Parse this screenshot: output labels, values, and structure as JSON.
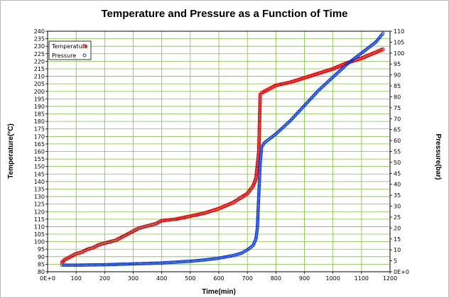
{
  "chart_data": {
    "type": "line",
    "title": "Temperature and Pressure as a Function of Time",
    "xlabel": "Time(min)",
    "ylabel_left": "Temperature(°C)",
    "ylabel_right": "Pressure(bar)",
    "xlim": [
      0,
      1200
    ],
    "ylim_left": [
      80,
      240
    ],
    "ylim_right": [
      0,
      110
    ],
    "x_ticks": [
      "0E+0",
      "100",
      "200",
      "300",
      "400",
      "500",
      "600",
      "700",
      "800",
      "900",
      "1000",
      "1100",
      "1200"
    ],
    "y_left_ticks": [
      "80",
      "85",
      "90",
      "95",
      "100",
      "105",
      "110",
      "115",
      "120",
      "125",
      "130",
      "135",
      "140",
      "145",
      "150",
      "155",
      "160",
      "165",
      "170",
      "175",
      "180",
      "185",
      "190",
      "195",
      "200",
      "205",
      "210",
      "215",
      "220",
      "225",
      "230",
      "235",
      "240"
    ],
    "y_right_ticks": [
      "0E+0",
      "5",
      "10",
      "15",
      "20",
      "25",
      "30",
      "35",
      "40",
      "45",
      "50",
      "55",
      "60",
      "65",
      "70",
      "75",
      "80",
      "85",
      "90",
      "95",
      "100",
      "105",
      "110"
    ],
    "grid": true,
    "legend_position": "top-left",
    "series": [
      {
        "name": "Temperature",
        "axis": "left",
        "color": "#e00000",
        "marker": "square",
        "x": [
          50,
          60,
          80,
          100,
          120,
          140,
          160,
          180,
          200,
          220,
          240,
          260,
          280,
          300,
          320,
          340,
          360,
          380,
          400,
          450,
          500,
          550,
          600,
          650,
          700,
          720,
          730,
          740,
          745,
          750,
          760,
          780,
          800,
          850,
          900,
          950,
          1000,
          1050,
          1100,
          1150,
          1175
        ],
        "y": [
          86,
          88,
          90,
          92,
          93,
          95,
          96,
          98,
          99,
          100,
          101,
          103,
          105,
          107,
          109,
          110,
          111,
          112,
          114,
          115,
          117,
          119,
          122,
          126,
          132,
          137,
          142,
          160,
          198,
          199,
          200,
          202,
          204,
          206,
          209,
          212,
          215,
          219,
          222,
          226,
          228
        ]
      },
      {
        "name": "Pressure",
        "axis": "right",
        "color": "#0033e0",
        "marker": "circle",
        "x": [
          50,
          100,
          200,
          300,
          400,
          500,
          550,
          600,
          650,
          680,
          700,
          720,
          730,
          735,
          740,
          745,
          750,
          760,
          780,
          800,
          850,
          900,
          950,
          1000,
          1050,
          1100,
          1150,
          1175
        ],
        "y": [
          3,
          3,
          3.2,
          3.6,
          4,
          4.8,
          5.4,
          6.2,
          7.4,
          8.5,
          10,
          12,
          15,
          20,
          35,
          50,
          57,
          59,
          61,
          63,
          69,
          76,
          83,
          89,
          95,
          100,
          105,
          109
        ]
      }
    ]
  }
}
